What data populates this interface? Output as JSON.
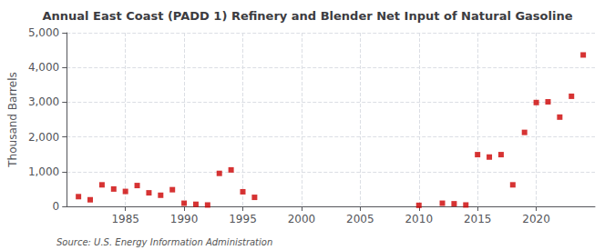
{
  "chart_data": {
    "type": "scatter",
    "title": "Annual East Coast (PADD 1) Refinery and Blender Net Input of Natural Gasoline",
    "ylabel": "Thousand Barrels",
    "annotation": "Source: U.S. Energy Information Administration",
    "x": [
      1981,
      1982,
      1983,
      1984,
      1985,
      1986,
      1987,
      1988,
      1989,
      1990,
      1991,
      1992,
      1993,
      1994,
      1995,
      1996,
      2010,
      2012,
      2013,
      2014,
      2015,
      2016,
      2017,
      2018,
      2019,
      2020,
      2021,
      2022,
      2023,
      2024
    ],
    "values": [
      280,
      190,
      620,
      500,
      430,
      600,
      390,
      320,
      480,
      90,
      60,
      40,
      950,
      1050,
      420,
      260,
      30,
      90,
      75,
      40,
      1490,
      1420,
      1490,
      620,
      2130,
      2990,
      3010,
      2570,
      3170,
      4360
    ],
    "color": "#cc0000",
    "marker": "square",
    "xlim": [
      1980,
      2025
    ],
    "xticks": [
      1985,
      1990,
      1995,
      2000,
      2005,
      2010,
      2015,
      2020
    ],
    "ylim": [
      0,
      5000
    ],
    "yticks": [
      0,
      {
        "value": 1000,
        "label": "1,000"
      },
      {
        "value": 2000,
        "label": "2,000"
      },
      {
        "value": 3000,
        "label": "3,000"
      },
      {
        "value": 4000,
        "label": "4,000"
      },
      {
        "value": 5000,
        "label": "5,000"
      }
    ],
    "grid": true
  }
}
